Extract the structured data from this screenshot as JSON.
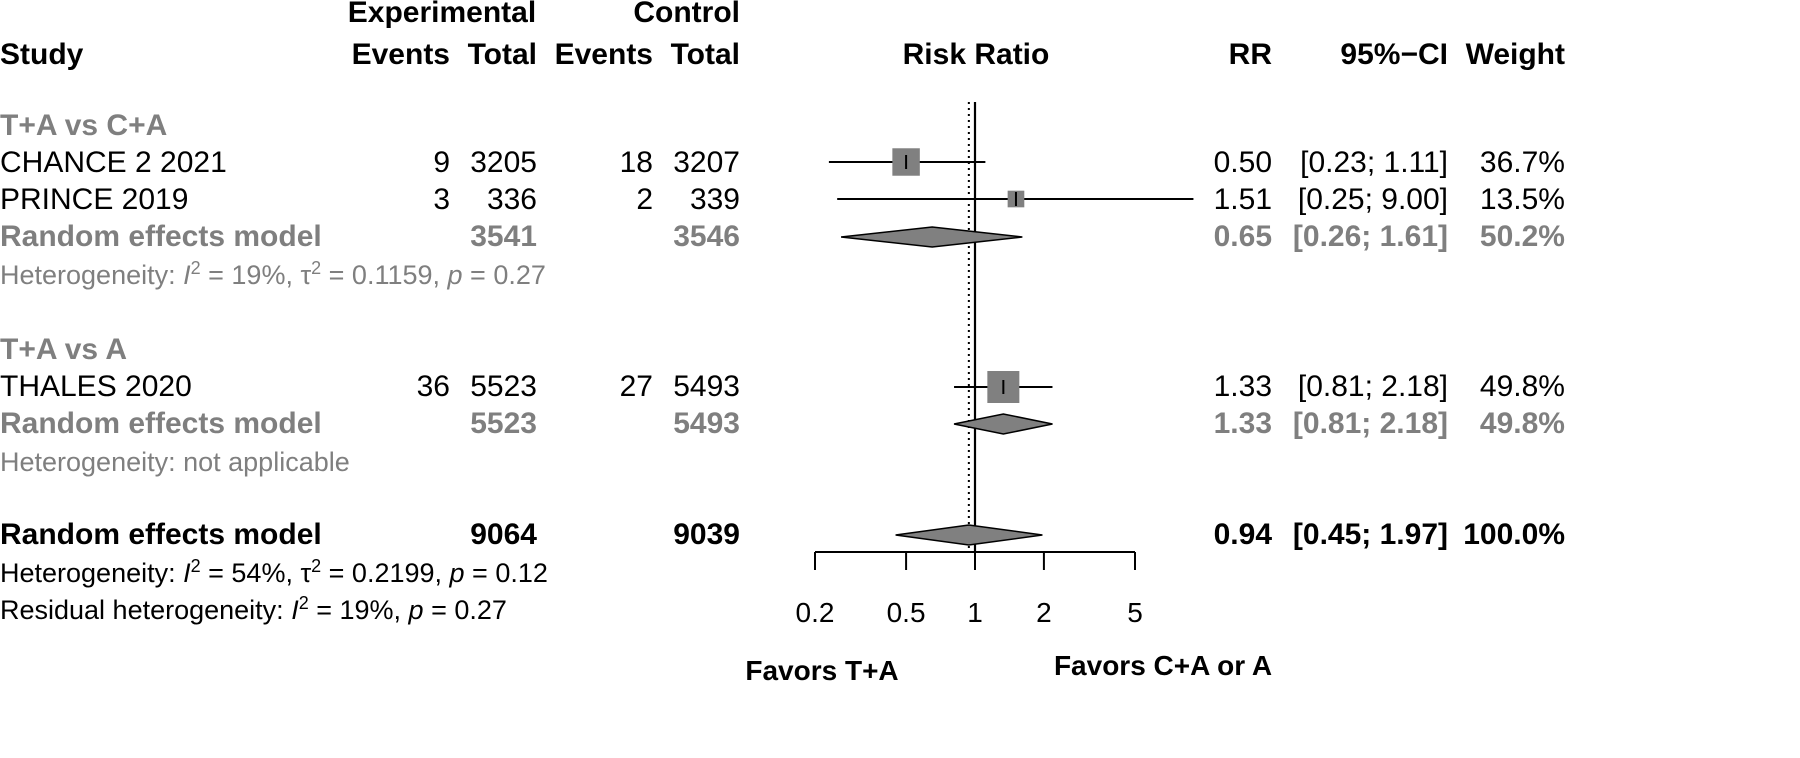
{
  "headers": {
    "study": "Study",
    "experimental": "Experimental",
    "control": "Control",
    "events": "Events",
    "total": "Total",
    "risk_ratio": "Risk Ratio",
    "rr": "RR",
    "ci": "95%−CI",
    "weight": "Weight"
  },
  "subgroups": [
    {
      "label": "T+A vs C+A",
      "studies": [
        {
          "name": "CHANCE 2 2021",
          "exp_events": "9",
          "exp_total": "3205",
          "ctrl_events": "18",
          "ctrl_total": "3207",
          "rr": "0.50",
          "ci": "[0.23; 1.11]",
          "weight": "36.7%"
        },
        {
          "name": "PRINCE 2019",
          "exp_events": "3",
          "exp_total": "336",
          "ctrl_events": "2",
          "ctrl_total": "339",
          "rr": "1.51",
          "ci": "[0.25; 9.00]",
          "weight": "13.5%"
        }
      ],
      "model": {
        "label": "Random effects model",
        "exp_total": "3541",
        "ctrl_total": "3546",
        "rr": "0.65",
        "ci": "[0.26; 1.61]",
        "weight": "50.2%"
      },
      "heterogeneity": {
        "prefix": "Heterogeneity: ",
        "I": "I",
        "sq": "2",
        "i2_text": " = 19%, ",
        "tau": "τ",
        "tau_text": " = 0.1159, ",
        "p": "p",
        "p_text": " = 0.27"
      }
    },
    {
      "label": "T+A vs A",
      "studies": [
        {
          "name": "THALES 2020",
          "exp_events": "36",
          "exp_total": "5523",
          "ctrl_events": "27",
          "ctrl_total": "5493",
          "rr": "1.33",
          "ci": "[0.81; 2.18]",
          "weight": "49.8%"
        }
      ],
      "model": {
        "label": "Random effects model",
        "exp_total": "5523",
        "ctrl_total": "5493",
        "rr": "1.33",
        "ci": "[0.81; 2.18]",
        "weight": "49.8%"
      },
      "heterogeneity": {
        "text": "Heterogeneity: not applicable"
      }
    }
  ],
  "overall": {
    "label": "Random effects model",
    "exp_total": "9064",
    "ctrl_total": "9039",
    "rr": "0.94",
    "ci": "[0.45; 1.97]",
    "weight": "100.0%",
    "heterogeneity": {
      "prefix": "Heterogeneity: ",
      "I": "I",
      "sq": "2",
      "i2_text": " = 54%, ",
      "tau": "τ",
      "tau_text": " = 0.2199, ",
      "p": "p",
      "p_text": " = 0.12"
    },
    "residual": {
      "prefix": "Residual heterogeneity: ",
      "I": "I",
      "sq": "2",
      "i2_text": " = 19%, ",
      "p": "p",
      "p_text": " = 0.27"
    }
  },
  "chart_data": {
    "type": "forest",
    "xscale": "log",
    "xlim": [
      0.2,
      5
    ],
    "ticks": [
      0.2,
      0.5,
      1,
      2,
      5
    ],
    "tick_labels": [
      "0.2",
      "0.5",
      "1",
      "2",
      "5"
    ],
    "null_value": 1,
    "pooled_reference": 0.94,
    "xlabel_left": "Favors T+A",
    "xlabel_right": "Favors C+A or A",
    "colors": {
      "box": "#808080",
      "diamond": "#808080",
      "line": "#000000"
    },
    "studies": [
      {
        "name": "CHANCE 2 2021",
        "rr": 0.5,
        "lower": 0.23,
        "upper": 1.11,
        "weight": 36.7
      },
      {
        "name": "PRINCE 2019",
        "rr": 1.51,
        "lower": 0.25,
        "upper": 9.0,
        "weight": 13.5
      },
      {
        "name": "THALES 2020",
        "rr": 1.33,
        "lower": 0.81,
        "upper": 2.18,
        "weight": 49.8
      }
    ],
    "pooled": [
      {
        "name": "T+A vs C+A random effects",
        "rr": 0.65,
        "lower": 0.26,
        "upper": 1.61
      },
      {
        "name": "T+A vs A random effects",
        "rr": 1.33,
        "lower": 0.81,
        "upper": 2.18
      },
      {
        "name": "Overall random effects",
        "rr": 0.94,
        "lower": 0.45,
        "upper": 1.97
      }
    ]
  }
}
